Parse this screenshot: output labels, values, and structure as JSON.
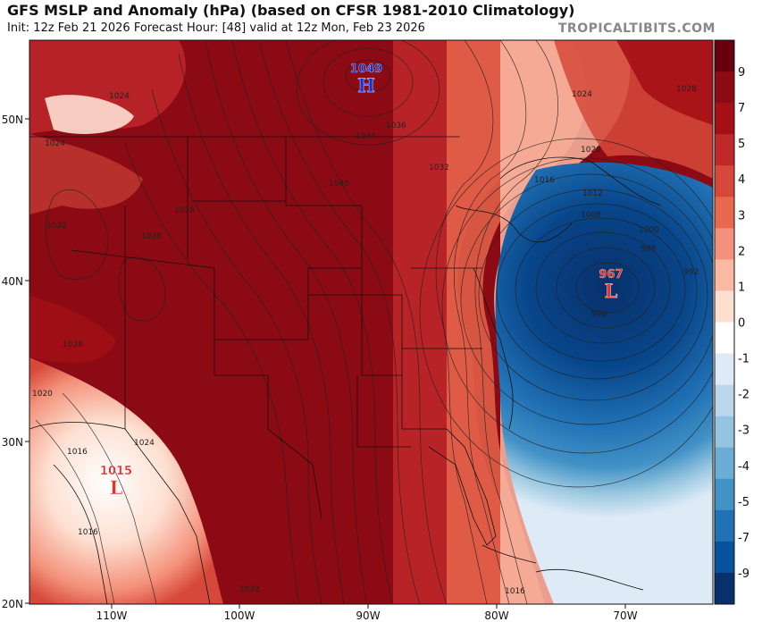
{
  "title": "GFS MSLP and Anomaly (hPa) (based on CFSR 1981-2010 Climatology)",
  "subtitle": "Init: 12z Feb 21 2026   Forecast Hour: [48]   valid at 12z Mon, Feb 23 2026",
  "brand": "TROPICALTIBITS.COM",
  "lat_ticks": [
    "50N",
    "40N",
    "30N",
    "20N"
  ],
  "lon_ticks": [
    "110W",
    "100W",
    "90W",
    "80W",
    "70W"
  ],
  "colorbar": {
    "labels": [
      "9",
      "7",
      "5",
      "4",
      "3",
      "2",
      "1",
      "0",
      "-1",
      "-2",
      "-3",
      "-4",
      "-5",
      "-7",
      "-9"
    ],
    "colors": [
      "#67000d",
      "#8b0a14",
      "#a50f15",
      "#c0282a",
      "#d6493a",
      "#e8694d",
      "#f4917a",
      "#fab9a3",
      "#fde0d2",
      "#ffffff",
      "#deebf7",
      "#bcd7ec",
      "#94c4df",
      "#6aaed6",
      "#4292c6",
      "#2171b5",
      "#08519c",
      "#08306b"
    ]
  },
  "centers": {
    "high": {
      "letter": "H",
      "value": "1049",
      "color": "#1133cc"
    },
    "low_atlantic": {
      "letter": "L",
      "value": "967",
      "color": "#e8312f"
    },
    "low_baja": {
      "letter": "L",
      "value": "1015",
      "color": "#e8312f"
    }
  },
  "isobar_labels": [
    "1024",
    "1024",
    "1032",
    "1028",
    "1028",
    "1028",
    "1020",
    "1016",
    "1024",
    "1016",
    "1044",
    "1040",
    "1036",
    "1032",
    "1024",
    "1020",
    "1016",
    "1012",
    "1008",
    "1000",
    "988",
    "992",
    "996",
    "1016",
    "1032",
    "1028"
  ]
}
